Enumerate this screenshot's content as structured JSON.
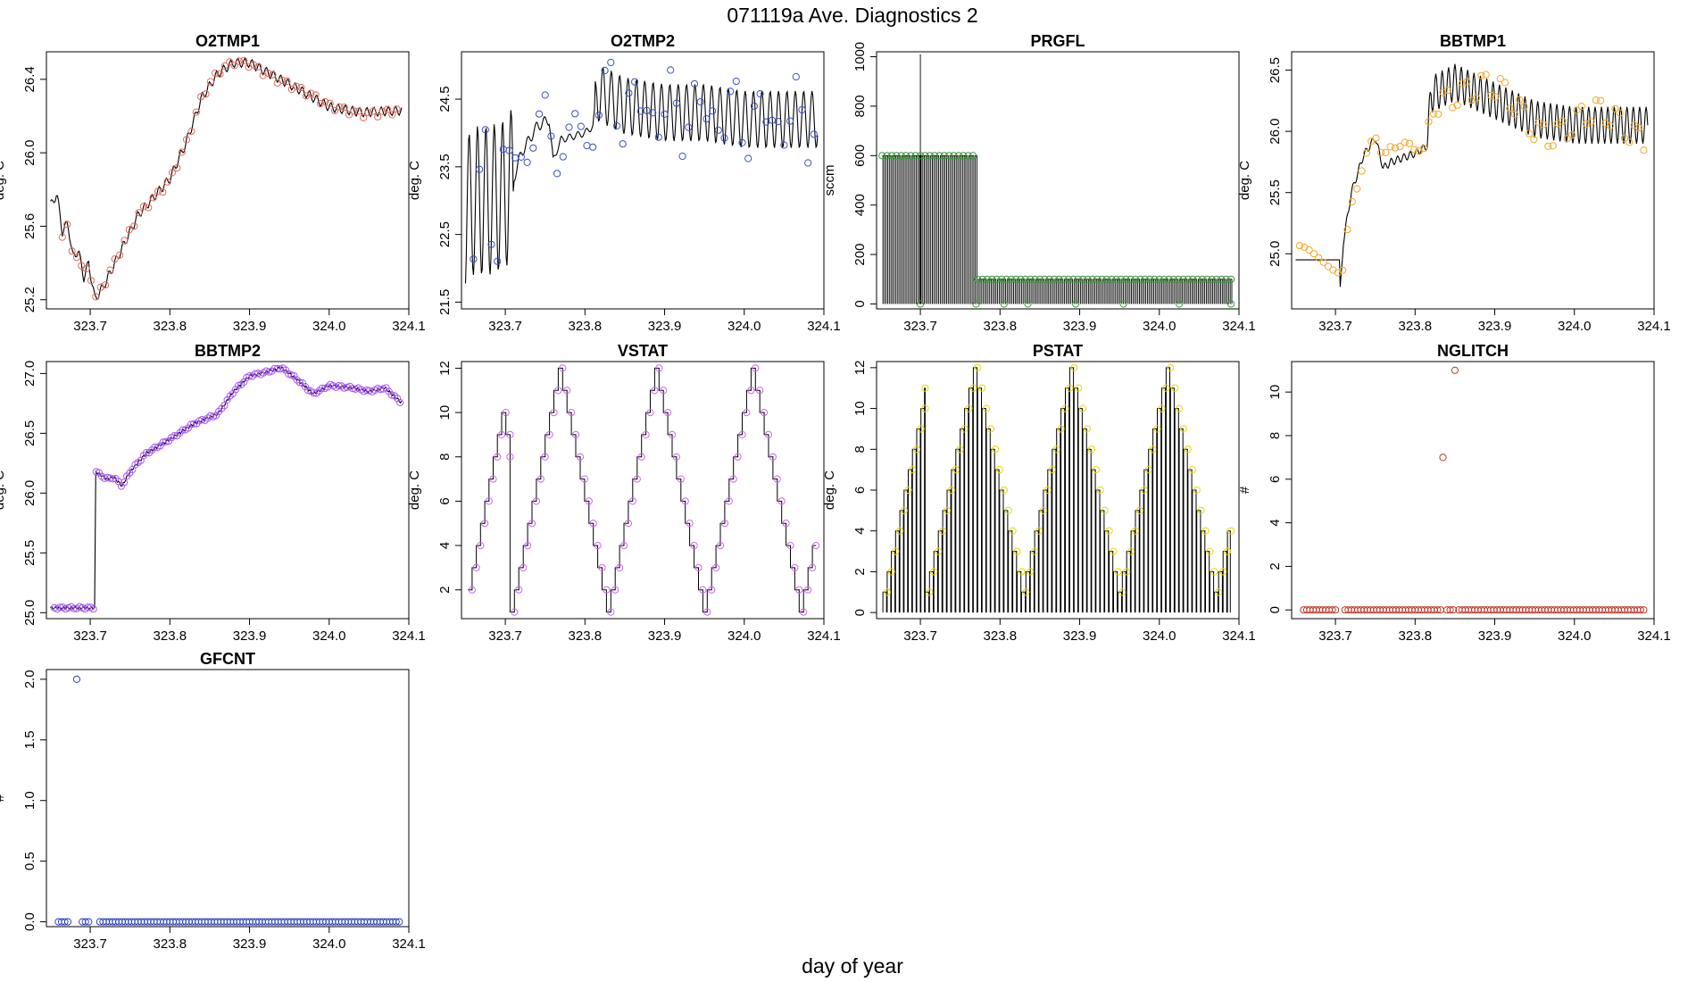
{
  "figure": {
    "title": "071119a   Ave. Diagnostics 2",
    "xlabel": "day of year"
  },
  "chart_data": [
    {
      "type": "line",
      "title": "O2TMP1",
      "ylabel": "deg. C",
      "xlim": [
        323.645,
        324.1
      ],
      "ylim": [
        25.15,
        26.55
      ],
      "x_ticks": [
        "323.7",
        "323.8",
        "323.9",
        "324.0",
        "324.1"
      ],
      "y_ticks": [
        "25.2",
        "25.6",
        "26.0",
        "26.4"
      ],
      "x_tick_values": [
        323.7,
        323.8,
        323.9,
        324.0,
        324.1
      ],
      "y_tick_values": [
        25.2,
        25.6,
        26.0,
        26.4
      ],
      "grid": false,
      "pattern": {
        "kind": "oscillating",
        "anchors": [
          [
            323.652,
            25.72
          ],
          [
            323.658,
            25.78
          ],
          [
            323.665,
            25.57
          ],
          [
            323.672,
            25.62
          ],
          [
            323.678,
            25.43
          ],
          [
            323.685,
            25.47
          ],
          [
            323.692,
            25.32
          ],
          [
            323.698,
            25.4
          ],
          [
            323.706,
            25.2
          ],
          [
            323.72,
            25.3
          ],
          [
            323.74,
            25.48
          ],
          [
            323.76,
            25.66
          ],
          [
            323.78,
            25.76
          ],
          [
            323.8,
            25.86
          ],
          [
            323.82,
            26.05
          ],
          [
            323.84,
            26.3
          ],
          [
            323.86,
            26.43
          ],
          [
            323.88,
            26.49
          ],
          [
            323.9,
            26.49
          ],
          [
            323.93,
            26.42
          ],
          [
            323.96,
            26.35
          ],
          [
            324.0,
            26.25
          ],
          [
            324.04,
            26.22
          ],
          [
            324.09,
            26.23
          ]
        ],
        "amplitude": 0.025,
        "period": 0.009,
        "step": 0.0015
      },
      "points": {
        "color": "#e06a5c",
        "start": 323.665,
        "end": 324.09,
        "step": 0.006,
        "jitter": 0.01
      }
    },
    {
      "type": "line",
      "title": "O2TMP2",
      "ylabel": "deg. C",
      "xlim": [
        323.645,
        324.1
      ],
      "ylim": [
        21.4,
        25.2
      ],
      "x_ticks": [
        "323.7",
        "323.8",
        "323.9",
        "324.0",
        "324.1"
      ],
      "y_ticks": [
        "21.5",
        "22.5",
        "23.5",
        "24.5"
      ],
      "x_tick_values": [
        323.7,
        323.8,
        323.9,
        324.0,
        324.1
      ],
      "y_tick_values": [
        21.5,
        22.5,
        23.5,
        24.5
      ],
      "grid": false,
      "pattern": {
        "kind": "oscillating",
        "anchors": [
          [
            323.65,
            22.8
          ],
          [
            323.66,
            23.0
          ],
          [
            323.68,
            23.0
          ],
          [
            323.7,
            23.1
          ],
          [
            323.71,
            23.3
          ],
          [
            323.72,
            23.7
          ],
          [
            323.74,
            24.1
          ],
          [
            323.755,
            24.2
          ],
          [
            323.76,
            23.6
          ],
          [
            323.77,
            23.9
          ],
          [
            323.8,
            24.0
          ],
          [
            323.81,
            24.1
          ],
          [
            323.815,
            24.6
          ],
          [
            323.85,
            24.4
          ],
          [
            323.9,
            24.3
          ],
          [
            323.95,
            24.3
          ],
          [
            324.0,
            24.2
          ],
          [
            324.05,
            24.2
          ],
          [
            324.09,
            24.2
          ]
        ],
        "amplitude_segments": [
          [
            323.645,
            323.71,
            1.1
          ],
          [
            323.71,
            323.755,
            0.08
          ],
          [
            323.755,
            323.812,
            0.05
          ],
          [
            323.812,
            324.1,
            0.42
          ]
        ],
        "period": 0.0105,
        "step": 0.001
      },
      "points": {
        "color": "#3a4fc7",
        "start": 323.66,
        "end": 324.09,
        "step": 0.0075,
        "jitter": 0.35
      }
    },
    {
      "type": "line",
      "title": "PRGFL",
      "ylabel": "sccm",
      "xlim": [
        323.645,
        324.1
      ],
      "ylim": [
        -20,
        1020
      ],
      "x_ticks": [
        "323.7",
        "323.8",
        "323.9",
        "324.0",
        "324.1"
      ],
      "y_ticks": [
        "0",
        "200",
        "400",
        "600",
        "800",
        "1000"
      ],
      "x_tick_values": [
        323.7,
        323.8,
        323.9,
        324.0,
        324.1
      ],
      "y_tick_values": [
        0,
        200,
        400,
        600,
        800,
        1000
      ],
      "grid": false,
      "pattern": {
        "kind": "pulse",
        "high_segments": [
          [
            323.645,
            323.77,
            600
          ],
          [
            323.77,
            324.1,
            100
          ]
        ],
        "low": 0,
        "period": 0.004,
        "spike": [
          323.7,
          1010
        ]
      },
      "points": {
        "color": "#3d9a3d",
        "start": 323.652,
        "end": 324.09,
        "step": 0.006,
        "high_segments": [
          [
            323.645,
            323.77,
            600
          ],
          [
            323.77,
            324.1,
            100
          ]
        ],
        "low_points": [
          323.7,
          323.77,
          323.805,
          323.835,
          323.895,
          323.955,
          324.025,
          324.09
        ]
      }
    },
    {
      "type": "line",
      "title": "BBTMP1",
      "ylabel": "deg. C",
      "xlim": [
        323.645,
        324.1
      ],
      "ylim": [
        24.55,
        26.65
      ],
      "x_ticks": [
        "323.7",
        "323.8",
        "323.9",
        "324.0",
        "324.1"
      ],
      "y_ticks": [
        "25.0",
        "25.5",
        "26.0",
        "26.5"
      ],
      "x_tick_values": [
        323.7,
        323.8,
        323.9,
        324.0,
        324.1
      ],
      "y_tick_values": [
        25.0,
        25.5,
        26.0,
        26.5
      ],
      "grid": false,
      "pattern": {
        "kind": "oscillating",
        "anchors": [
          [
            323.65,
            24.95
          ],
          [
            323.705,
            24.95
          ],
          [
            323.706,
            24.7
          ],
          [
            323.71,
            25.1
          ],
          [
            323.72,
            25.5
          ],
          [
            323.735,
            25.8
          ],
          [
            323.75,
            25.95
          ],
          [
            323.76,
            25.7
          ],
          [
            323.77,
            25.75
          ],
          [
            323.8,
            25.82
          ],
          [
            323.815,
            25.88
          ],
          [
            323.82,
            26.3
          ],
          [
            323.85,
            26.4
          ],
          [
            323.9,
            26.25
          ],
          [
            323.95,
            26.1
          ],
          [
            324.0,
            26.05
          ],
          [
            324.05,
            26.05
          ],
          [
            324.09,
            26.05
          ]
        ],
        "amplitude_segments": [
          [
            323.645,
            323.705,
            0.0
          ],
          [
            323.705,
            323.815,
            0.03
          ],
          [
            323.815,
            324.1,
            0.15
          ]
        ],
        "period": 0.008,
        "step": 0.001
      },
      "points": {
        "color": "#f5a623",
        "start": 323.655,
        "end": 324.09,
        "step": 0.006,
        "jitter": 0.12
      }
    },
    {
      "type": "line",
      "title": "BBTMP2",
      "ylabel": "deg. C",
      "xlim": [
        323.645,
        324.1
      ],
      "ylim": [
        24.95,
        27.1
      ],
      "x_ticks": [
        "323.7",
        "323.8",
        "323.9",
        "324.0",
        "324.1"
      ],
      "y_ticks": [
        "25.0",
        "25.5",
        "26.0",
        "26.5",
        "27.0"
      ],
      "x_tick_values": [
        323.7,
        323.8,
        323.9,
        324.0,
        324.1
      ],
      "y_tick_values": [
        25.0,
        25.5,
        26.0,
        26.5,
        27.0
      ],
      "grid": false,
      "pattern": {
        "kind": "oscillating",
        "anchors": [
          [
            323.655,
            25.04
          ],
          [
            323.706,
            25.04
          ],
          [
            323.707,
            26.18
          ],
          [
            323.72,
            26.12
          ],
          [
            323.73,
            26.13
          ],
          [
            323.74,
            26.06
          ],
          [
            323.75,
            26.18
          ],
          [
            323.77,
            26.33
          ],
          [
            323.8,
            26.45
          ],
          [
            323.83,
            26.58
          ],
          [
            323.86,
            26.66
          ],
          [
            323.88,
            26.85
          ],
          [
            323.9,
            26.98
          ],
          [
            323.92,
            27.01
          ],
          [
            323.94,
            27.05
          ],
          [
            323.96,
            26.95
          ],
          [
            323.98,
            26.83
          ],
          [
            324.0,
            26.9
          ],
          [
            324.03,
            26.88
          ],
          [
            324.05,
            26.85
          ],
          [
            324.07,
            26.88
          ],
          [
            324.09,
            26.76
          ]
        ],
        "amplitude": 0.012,
        "period": 0.005,
        "step": 0.0015
      },
      "points": {
        "color": "#a855f7",
        "start": 323.655,
        "end": 324.09,
        "step": 0.0035,
        "jitter": 0.0
      }
    },
    {
      "type": "line",
      "title": "VSTAT",
      "ylabel": "deg. C",
      "xlim": [
        323.645,
        324.1
      ],
      "ylim": [
        0.7,
        12.3
      ],
      "x_ticks": [
        "323.7",
        "323.8",
        "323.9",
        "324.0",
        "324.1"
      ],
      "y_ticks": [
        "2",
        "4",
        "6",
        "8",
        "10",
        "12"
      ],
      "x_tick_values": [
        323.7,
        323.8,
        323.9,
        324.0,
        324.1
      ],
      "y_tick_values": [
        2,
        4,
        6,
        8,
        10,
        12
      ],
      "grid": false,
      "pattern": {
        "kind": "staircase",
        "segments": [
          [
            323.653,
            323.706,
            1,
            10,
            0.0053
          ],
          [
            323.706,
            324.09,
            1,
            12,
            0.0055
          ]
        ]
      },
      "points": {
        "color": "#cc66ee"
      }
    },
    {
      "type": "line",
      "title": "PSTAT",
      "ylabel": "deg. C",
      "xlim": [
        323.645,
        324.1
      ],
      "ylim": [
        -0.3,
        12.3
      ],
      "x_ticks": [
        "323.7",
        "323.8",
        "323.9",
        "324.0",
        "324.1"
      ],
      "y_ticks": [
        "0",
        "2",
        "4",
        "6",
        "8",
        "10",
        "12"
      ],
      "x_tick_values": [
        323.7,
        323.8,
        323.9,
        324.0,
        324.1
      ],
      "y_tick_values": [
        0,
        2,
        4,
        6,
        8,
        10,
        12
      ],
      "grid": false,
      "pattern": {
        "kind": "pulse-stair",
        "segments": [
          [
            323.653,
            323.706,
            1,
            11,
            0.0053
          ],
          [
            323.706,
            324.09,
            1,
            12,
            0.0055
          ]
        ]
      },
      "points": {
        "color": "#e8d800"
      }
    },
    {
      "type": "scatter",
      "title": "NGLITCH",
      "ylabel": "#",
      "xlim": [
        323.645,
        324.1
      ],
      "ylim": [
        -0.4,
        11.4
      ],
      "x_ticks": [
        "323.7",
        "323.8",
        "323.9",
        "324.0",
        "324.1"
      ],
      "y_ticks": [
        "0",
        "2",
        "4",
        "6",
        "8",
        "10"
      ],
      "x_tick_values": [
        323.7,
        323.8,
        323.9,
        324.0,
        324.1
      ],
      "y_tick_values": [
        0,
        2,
        4,
        6,
        8,
        10
      ],
      "grid": false,
      "points": {
        "color": "#c0392b",
        "zero_ranges": [
          [
            323.66,
            323.7,
            0.004
          ],
          [
            323.712,
            323.835,
            0.004
          ],
          [
            323.84,
            323.848,
            0.004
          ],
          [
            323.855,
            324.09,
            0.004
          ]
        ],
        "extra": [
          [
            323.835,
            7
          ],
          [
            323.85,
            11
          ]
        ]
      }
    },
    {
      "type": "scatter",
      "title": "GFCNT",
      "ylabel": "#",
      "xlim": [
        323.645,
        324.1
      ],
      "ylim": [
        -0.04,
        2.08
      ],
      "x_ticks": [
        "323.7",
        "323.8",
        "323.9",
        "324.0",
        "324.1"
      ],
      "y_ticks": [
        "0.0",
        "0.5",
        "1.0",
        "1.5",
        "2.0"
      ],
      "x_tick_values": [
        323.7,
        323.8,
        323.9,
        324.0,
        324.1
      ],
      "y_tick_values": [
        0.0,
        0.5,
        1.0,
        1.5,
        2.0
      ],
      "grid": false,
      "points": {
        "color": "#2b3fbf",
        "zero_ranges": [
          [
            323.66,
            323.675,
            0.004
          ],
          [
            323.69,
            323.7,
            0.004
          ],
          [
            323.712,
            324.09,
            0.004
          ]
        ],
        "extra": [
          [
            323.683,
            2.0
          ]
        ]
      }
    }
  ]
}
